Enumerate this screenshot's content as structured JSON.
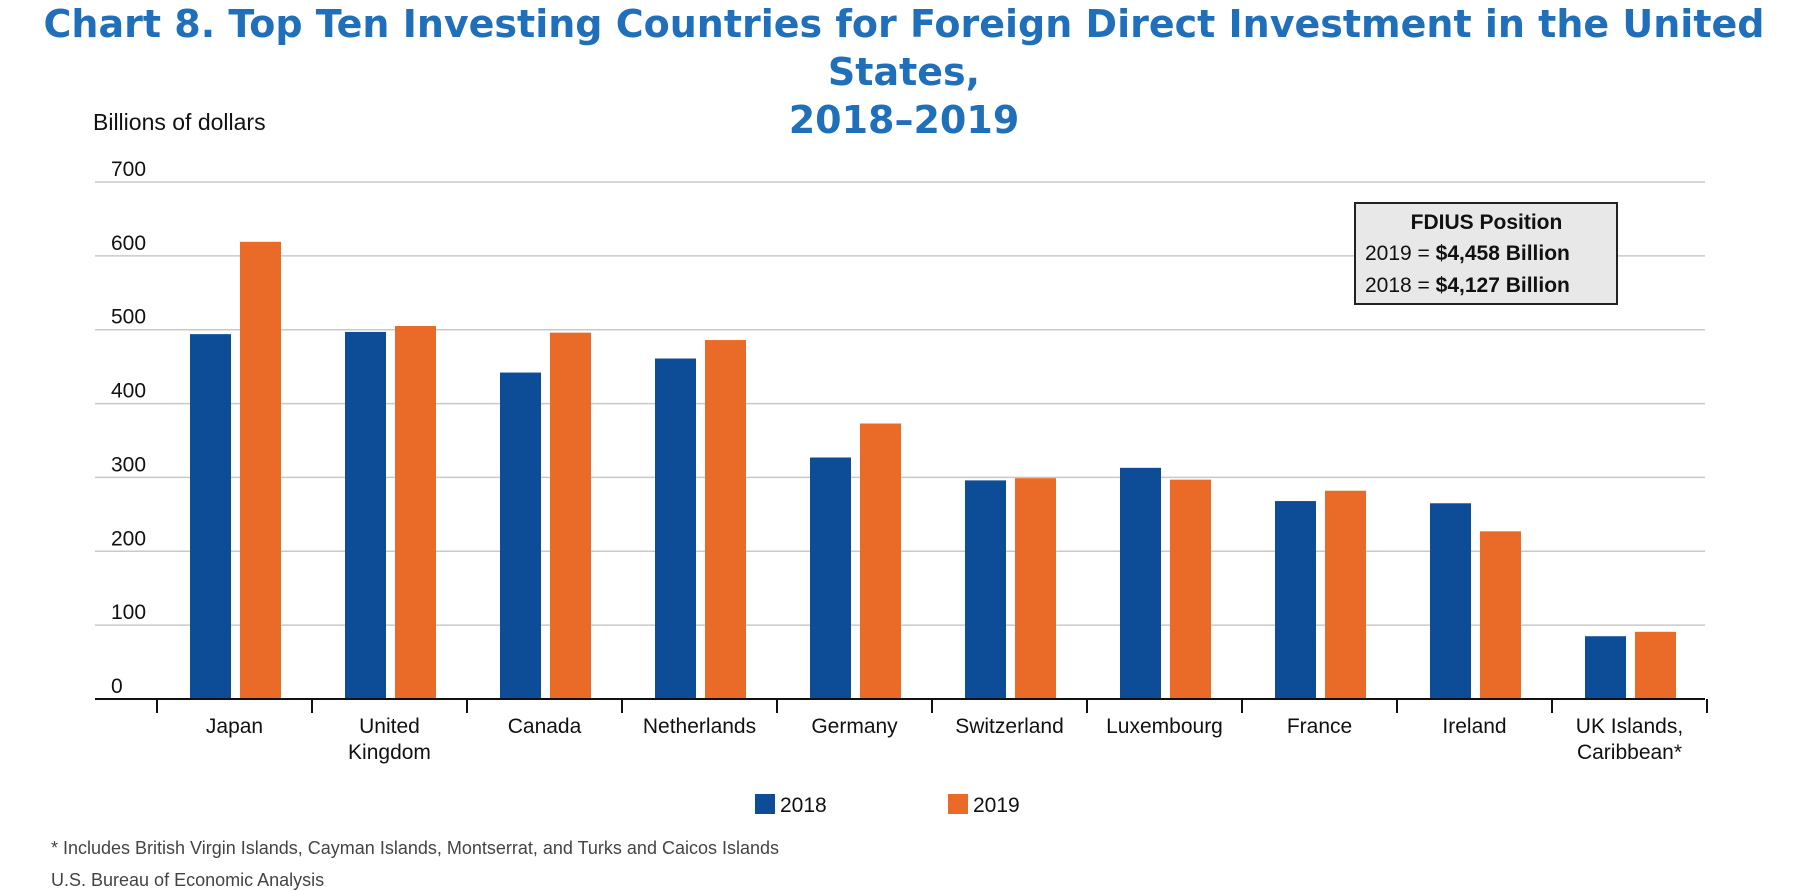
{
  "chart_data": {
    "type": "bar",
    "title_line1": "Chart 8. Top Ten Investing Countries for Foreign Direct Investment in the United States,",
    "title_line2": "2018–2019",
    "ylabel": "Billions of dollars",
    "ylim": [
      0,
      700
    ],
    "yticks": [
      "700",
      "600",
      "500",
      "400",
      "300",
      "200",
      "100",
      "0"
    ],
    "grid": true,
    "categories": [
      [
        "Japan"
      ],
      [
        "United",
        "Kingdom"
      ],
      [
        "Canada"
      ],
      [
        "Netherlands"
      ],
      [
        "Germany"
      ],
      [
        "Switzerland"
      ],
      [
        "Luxembourg"
      ],
      [
        "France"
      ],
      [
        "Ireland"
      ],
      [
        "UK Islands,",
        "Caribbean*"
      ]
    ],
    "series": [
      {
        "name": "2018",
        "color": "#0d4c97",
        "values": [
          494,
          497,
          442,
          461,
          327,
          296,
          313,
          268,
          265,
          85
        ]
      },
      {
        "name": "2019",
        "color": "#ea6a27",
        "values": [
          619,
          505,
          496,
          486,
          373,
          299,
          297,
          282,
          227,
          91
        ]
      }
    ],
    "legend_placement": "bottom-center"
  },
  "infobox": {
    "header": "FDIUS Position",
    "line1_prefix": "2019 = ",
    "line1_value": "$4,458 Billion",
    "line2_prefix": "2018 = ",
    "line2_value": "$4,127 Billion"
  },
  "footnotes": {
    "note": "* Includes British Virgin Islands, Cayman Islands, Montserrat, and Turks and Caicos Islands",
    "source": "U.S. Bureau of Economic Analysis"
  }
}
